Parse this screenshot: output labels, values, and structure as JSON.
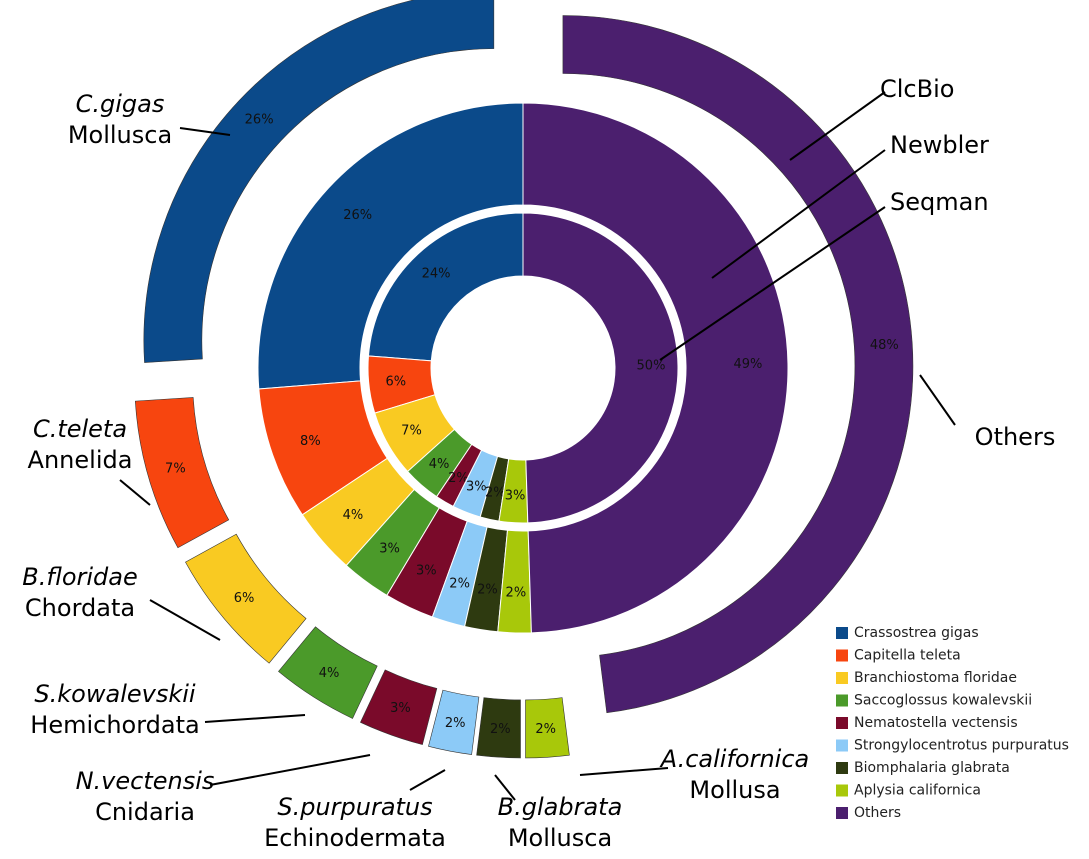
{
  "chart_data": {
    "type": "multi-ring-pie",
    "categories": [
      "Crassostrea gigas",
      "Capitella teleta",
      "Branchiostoma floridae",
      "Saccoglossus kowalevskii",
      "Nematostella vectensis",
      "Strongylocentrotus purpuratus",
      "Biomphalaria glabrata",
      "Aplysia californica",
      "Others"
    ],
    "colors": [
      "#0b4a8a",
      "#f7450f",
      "#f9ca22",
      "#4b9a2a",
      "#7a0a2a",
      "#8ccaf7",
      "#2e3a10",
      "#a8c80a",
      "#4b1f6e"
    ],
    "rings": [
      {
        "name": "Seqman",
        "values": [
          24,
          6,
          7,
          4,
          2,
          3,
          2,
          3,
          50
        ],
        "value_labels": [
          "24%",
          "6%",
          "7%",
          "4%",
          "2%",
          "3%",
          "2%",
          "3%",
          "50%"
        ]
      },
      {
        "name": "Newbler",
        "values": [
          26,
          8,
          4,
          3,
          3,
          2,
          2,
          2,
          49
        ],
        "value_labels": [
          "26%",
          "8%",
          "4%",
          "3%",
          "3%",
          "2%",
          "2%",
          "2%",
          "49%"
        ]
      },
      {
        "name": "ClcBio",
        "values": [
          26,
          7,
          6,
          4,
          3,
          2,
          2,
          2,
          48
        ],
        "value_labels": [
          "26%",
          "7%",
          "6%",
          "4%",
          "3%",
          "2%",
          "2%",
          "2%",
          "48%"
        ]
      }
    ],
    "species_labels": [
      {
        "name": "C.gigas",
        "phylum": "Mollusca"
      },
      {
        "name": "C.teleta",
        "phylum": "Annelida"
      },
      {
        "name": "B.floridae",
        "phylum": "Chordata"
      },
      {
        "name": "S.kowalevskii",
        "phylum": "Hemichordata"
      },
      {
        "name": "N.vectensis",
        "phylum": "Cnidaria"
      },
      {
        "name": "S.purpuratus",
        "phylum": "Echinodermata"
      },
      {
        "name": "B.glabrata",
        "phylum": "Mollusca"
      },
      {
        "name": "A.californica",
        "phylum": "Mollusa"
      },
      {
        "name": "Others"
      }
    ],
    "legend": "bottom-right"
  }
}
